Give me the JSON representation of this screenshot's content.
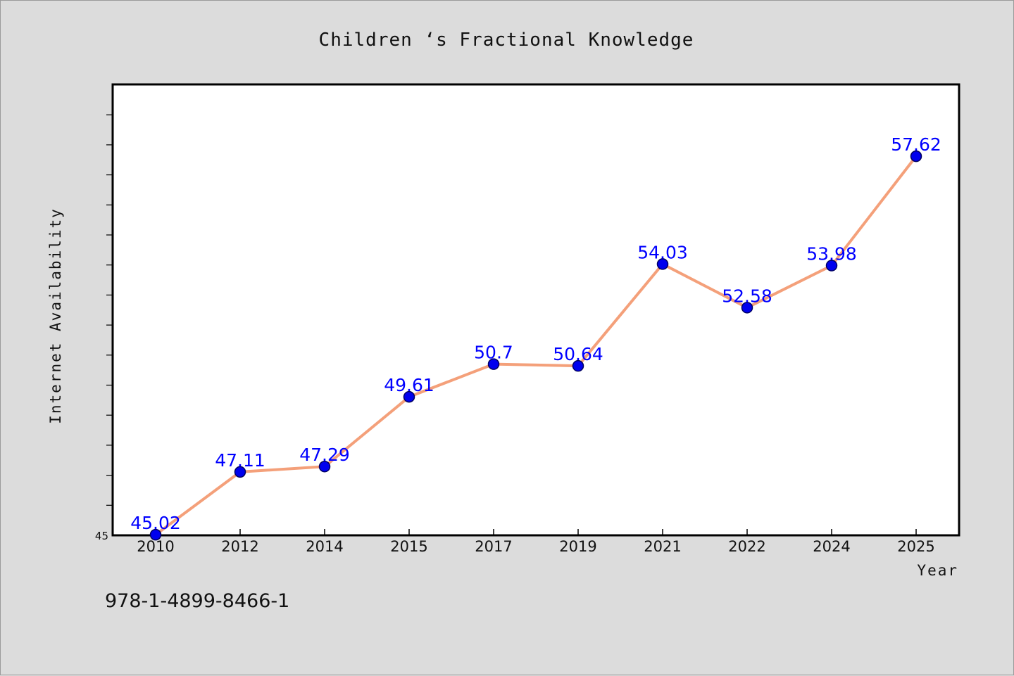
{
  "chart_data": {
    "type": "line",
    "title": "Children ‘s Fractional Knowledge",
    "xlabel": "Year",
    "ylabel": "Internet Availability",
    "categories": [
      "2010",
      "2012",
      "2014",
      "2015",
      "2017",
      "2019",
      "2021",
      "2022",
      "2024",
      "2025"
    ],
    "series": [
      {
        "values": [
          45.02,
          47.11,
          47.29,
          49.61,
          50.7,
          50.64,
          54.03,
          52.58,
          53.98,
          57.62
        ],
        "labels": [
          "45.02",
          "47.11",
          "47.29",
          "49.61",
          "50.7",
          "50.64",
          "54.03",
          "52.58",
          "53.98",
          "57.62"
        ]
      }
    ],
    "ylim": [
      45,
      60
    ],
    "yticks": [
      45
    ],
    "ytick_labels": [
      "45"
    ],
    "grid": false,
    "legend": "none",
    "colors": {
      "line": "#f4a07a",
      "marker": "#0000ee",
      "marker_edge": "#000060",
      "data_label": "#0000ff",
      "plot_background": "#ffffff",
      "figure_background": "#dcdcdc"
    }
  },
  "footer": {
    "isbn": "978-1-4899-8466-1"
  }
}
